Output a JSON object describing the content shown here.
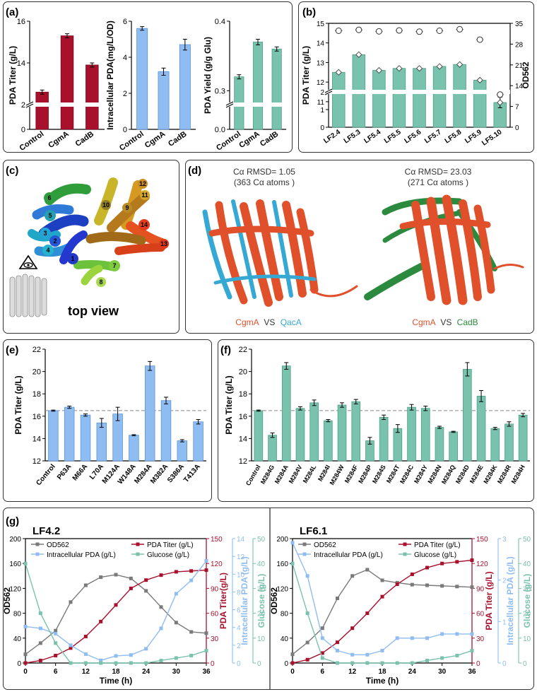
{
  "panels": {
    "a": "(a)",
    "b": "(b)",
    "c": "(c)",
    "d": "(d)",
    "e": "(e)",
    "f": "(f)",
    "g": "(g)"
  },
  "colors": {
    "red": "#a8102c",
    "red_light": "#c43b55",
    "blue": "#8fbdf2",
    "teal": "#79c2ad",
    "teal_dark": "#3b8f7a",
    "orange": "#e0502a",
    "cyan": "#36a8d4",
    "green": "#2b8a3e"
  },
  "structure_c": {
    "view_label": "top view",
    "helix_numbers": [
      "1",
      "2",
      "3",
      "4",
      "5",
      "6",
      "7",
      "8",
      "9",
      "10",
      "11",
      "12",
      "13",
      "14"
    ],
    "icons": [
      "eye-icon",
      "transporter-side-view-icon"
    ]
  },
  "structure_d": {
    "left": {
      "rmsd": "Cα RMSD= 1.05",
      "atoms": "(363 Cα atoms )",
      "name_a": "CgmA",
      "vs": "VS",
      "name_b": "QacA"
    },
    "right": {
      "rmsd": "Cα RMSD= 23.03",
      "atoms": "(271 Cα atoms )",
      "name_a": "CgmA",
      "vs": "VS",
      "name_b": "CadB"
    }
  },
  "chart_data": [
    {
      "id": "a1",
      "type": "bar",
      "categories": [
        "Control",
        "CgmA",
        "CadB"
      ],
      "values": [
        12.6,
        15.3,
        13.9
      ],
      "errors": [
        0.1,
        0.1,
        0.1
      ],
      "ylabel": "PDA Titer (g/L)",
      "axis_break": {
        "lower": [
          0,
          2
        ],
        "upper": [
          12,
          16
        ]
      },
      "yticks": [
        "0",
        "2",
        "14",
        "16"
      ],
      "color": "red"
    },
    {
      "id": "a2",
      "type": "bar",
      "categories": [
        "Control",
        "CgmA",
        "CadB"
      ],
      "values": [
        5.6,
        3.2,
        4.7
      ],
      "errors": [
        0.1,
        0.2,
        0.3
      ],
      "ylabel": "Intracellular PDA(mg/L/OD)",
      "ylim": [
        0,
        6
      ],
      "yticks": [
        "0",
        "2",
        "4",
        "6"
      ],
      "color": "blue"
    },
    {
      "id": "a3",
      "type": "bar",
      "categories": [
        "Control",
        "CgmA",
        "CadB"
      ],
      "values": [
        0.32,
        0.37,
        0.36
      ],
      "errors": [
        0.003,
        0.004,
        0.003
      ],
      "ylabel": "PDA Yield (g/g Glu)",
      "axis_break": {
        "lower": [
          0,
          0.1
        ],
        "upper": [
          0.28,
          0.4
        ]
      },
      "yticks": [
        "0.0",
        "0.3",
        "0.4"
      ],
      "color": "teal"
    },
    {
      "id": "b",
      "type": "bar",
      "categories": [
        "LF2.4",
        "LF5.3",
        "LF5.4",
        "LF5.5",
        "LF5.6",
        "LF5.7",
        "LF5.8",
        "LF5.9",
        "LF5.10"
      ],
      "values": [
        12.5,
        13.4,
        12.6,
        12.7,
        12.7,
        12.8,
        12.9,
        12.1,
        1.4
      ],
      "errors": [
        0.05,
        0.05,
        0.05,
        0.05,
        0.05,
        0.05,
        0.05,
        0.05,
        0.3
      ],
      "ylabel": "PDA  Titer (g/L)",
      "y2label": "OD562",
      "axis_break": {
        "lower": [
          0,
          2
        ],
        "upper": [
          11.5,
          15
        ]
      },
      "yticks": [
        "0",
        "1",
        "2",
        "11",
        "12",
        "13",
        "14",
        "15"
      ],
      "y2ticks": [
        "0",
        "7",
        "14",
        "21",
        "28",
        "35"
      ],
      "y2lim": [
        0,
        35
      ],
      "od_values": [
        32.5,
        32.8,
        32.3,
        32.6,
        32.2,
        32.5,
        33,
        29.5,
        11
      ],
      "color": "teal"
    },
    {
      "id": "e",
      "type": "bar",
      "categories": [
        "Control",
        "P63A",
        "M66A",
        "L70A",
        "M124A",
        "W148A",
        "M284A",
        "M382A",
        "S386A",
        "T413A"
      ],
      "values": [
        16.5,
        16.8,
        16.1,
        15.4,
        16.2,
        14.3,
        20.5,
        17.4,
        13.8,
        15.5
      ],
      "errors": [
        0.05,
        0.1,
        0.1,
        0.4,
        0.6,
        0.05,
        0.4,
        0.3,
        0.1,
        0.2
      ],
      "ylabel": "PDA Titer (g/L)",
      "ylim": [
        12,
        22
      ],
      "yticks": [
        "12",
        "14",
        "16",
        "18",
        "20",
        "22"
      ],
      "reference_line": 16.5,
      "color": "blue"
    },
    {
      "id": "f",
      "type": "bar",
      "categories": [
        "Control",
        "M284G",
        "M284A",
        "M284V",
        "M284L",
        "M284I",
        "M284W",
        "M284F",
        "M284P",
        "M284S",
        "M284T",
        "M284C",
        "M284Y",
        "M284N",
        "M284Q",
        "M284D",
        "M284E",
        "M284K",
        "M284R",
        "M284H"
      ],
      "values": [
        16.5,
        14.3,
        20.5,
        16.7,
        17.2,
        15.6,
        17.0,
        17.3,
        13.8,
        15.9,
        14.9,
        16.8,
        16.7,
        15.0,
        14.6,
        20.2,
        17.8,
        14.9,
        15.3,
        16.1
      ],
      "errors": [
        0.05,
        0.2,
        0.3,
        0.15,
        0.25,
        0.1,
        0.2,
        0.2,
        0.3,
        0.2,
        0.35,
        0.25,
        0.2,
        0.1,
        0.05,
        0.6,
        0.5,
        0.1,
        0.2,
        0.15
      ],
      "ylabel": "PDA Titer (g/L)",
      "ylim": [
        12,
        22
      ],
      "yticks": [
        "12",
        "14",
        "16",
        "18",
        "20",
        "22"
      ],
      "reference_line": 16.5,
      "color": "teal"
    },
    {
      "id": "g1",
      "type": "line",
      "title": "LF4.2",
      "xlabel": "Time (h)",
      "xlim": [
        0,
        36
      ],
      "xticks": [
        "0",
        "6",
        "12",
        "18",
        "24",
        "30",
        "36"
      ],
      "ylabel": "OD562",
      "ylim": [
        0,
        200
      ],
      "yticks": [
        "0",
        "40",
        "80",
        "120",
        "160",
        "200"
      ],
      "y2label": "PDA Titer(g/L)",
      "y2lim": [
        0,
        150
      ],
      "y2ticks": [
        "0",
        "30",
        "60",
        "90",
        "120",
        "150"
      ],
      "y3label": "Intracellular PDA (g/L)",
      "y3lim": [
        0,
        14
      ],
      "y3ticks": [
        "0",
        "2",
        "4",
        "6",
        "8",
        "10",
        "12",
        "14"
      ],
      "y4label": "Glucose (g/L)",
      "y4lim": [
        0,
        50
      ],
      "y4ticks": [
        "0",
        "10",
        "20",
        "30",
        "40",
        "50"
      ],
      "legend": [
        "OD562",
        "PDA Titer (g/L)",
        "Intracellular PDA (g/L)",
        "Glucose (g/L)"
      ],
      "series": [
        {
          "name": "OD562",
          "axis": "y",
          "color": "#7a7a7a",
          "marker": "square",
          "x": [
            0,
            3,
            6,
            9,
            12,
            15,
            18,
            21,
            24,
            27,
            30,
            33,
            36
          ],
          "y": [
            14,
            32,
            52,
            98,
            125,
            138,
            142,
            136,
            116,
            90,
            65,
            50,
            48
          ]
        },
        {
          "name": "PDA Titer (g/L)",
          "axis": "y2",
          "color": "#a8102c",
          "marker": "square",
          "x": [
            0,
            3,
            6,
            9,
            12,
            15,
            18,
            21,
            24,
            27,
            30,
            33,
            36
          ],
          "y": [
            0,
            3,
            9,
            18,
            32,
            50,
            70,
            90,
            100,
            106,
            110,
            111,
            112
          ]
        },
        {
          "name": "Intracellular PDA (g/L)",
          "axis": "y3",
          "color": "#8fbdf2",
          "marker": "square",
          "x": [
            0,
            3,
            6,
            9,
            12,
            15,
            18,
            21,
            24,
            27,
            30,
            33,
            36
          ],
          "y": [
            4.1,
            3.9,
            3.3,
            2.0,
            1.0,
            0.3,
            0.8,
            0.9,
            1.6,
            3.9,
            7.8,
            9.3,
            11.5
          ]
        },
        {
          "name": "Glucose (g/L)",
          "axis": "y4",
          "color": "#79c2ad",
          "marker": "square",
          "x": [
            0,
            3,
            6,
            9,
            12,
            15,
            18,
            21,
            24,
            27,
            30,
            33,
            36
          ],
          "y": [
            40,
            20,
            8,
            0,
            0,
            0,
            0,
            0,
            0,
            1,
            2,
            3,
            5
          ]
        }
      ]
    },
    {
      "id": "g2",
      "type": "line",
      "title": "LF6.1",
      "xlabel": "Time (h)",
      "xlim": [
        0,
        36
      ],
      "xticks": [
        "0",
        "6",
        "12",
        "18",
        "24",
        "30",
        "36"
      ],
      "ylabel": "OD562",
      "ylim": [
        0,
        200
      ],
      "yticks": [
        "0",
        "40",
        "80",
        "120",
        "160",
        "200"
      ],
      "y2label": "PDA Titer (g/L)",
      "y2lim": [
        0,
        150
      ],
      "y2ticks": [
        "0",
        "30",
        "60",
        "90",
        "120",
        "150"
      ],
      "y3label": "Intracellular PDA (g/L)",
      "y3lim": [
        0,
        3
      ],
      "y3ticks": [
        "0",
        "1",
        "2",
        "3"
      ],
      "y4label": "Glucose (g/L)",
      "y4lim": [
        0,
        50
      ],
      "y4ticks": [
        "0",
        "10",
        "20",
        "30",
        "40",
        "50"
      ],
      "legend": [
        "OD562",
        "PDA Titer (g/L)",
        "Intracellular PDA (g/L)",
        "Glucose (g/L)"
      ],
      "series": [
        {
          "name": "OD562",
          "axis": "y",
          "color": "#7a7a7a",
          "marker": "square",
          "x": [
            0,
            3,
            6,
            9,
            12,
            15,
            18,
            21,
            24,
            27,
            30,
            33,
            36
          ],
          "y": [
            14,
            33,
            56,
            104,
            140,
            150,
            133,
            129,
            126,
            125,
            124,
            123,
            122
          ]
        },
        {
          "name": "PDA Titer (g/L)",
          "axis": "y2",
          "color": "#a8102c",
          "marker": "square",
          "x": [
            0,
            3,
            6,
            9,
            12,
            15,
            18,
            21,
            24,
            27,
            30,
            33,
            36
          ],
          "y": [
            0,
            4,
            12,
            25,
            42,
            60,
            80,
            95,
            107,
            115,
            120,
            122,
            124
          ]
        },
        {
          "name": "Intracellular PDA (g/L)",
          "axis": "y3",
          "color": "#8fbdf2",
          "marker": "square",
          "x": [
            0,
            3,
            6,
            9,
            12,
            15,
            18,
            21,
            24,
            27,
            30,
            33,
            36
          ],
          "y": [
            2.9,
            2.1,
            0.6,
            0.3,
            0.2,
            0.2,
            0.3,
            0.6,
            0.6,
            0.6,
            0.7,
            0.7,
            0.7
          ]
        },
        {
          "name": "Glucose (g/L)",
          "axis": "y4",
          "color": "#79c2ad",
          "marker": "square",
          "x": [
            0,
            3,
            6,
            9,
            12,
            15,
            18,
            21,
            24,
            27,
            30,
            33,
            36
          ],
          "y": [
            40,
            20,
            2,
            0,
            0,
            0,
            0,
            0,
            0,
            1,
            2,
            3,
            5
          ]
        }
      ]
    }
  ]
}
